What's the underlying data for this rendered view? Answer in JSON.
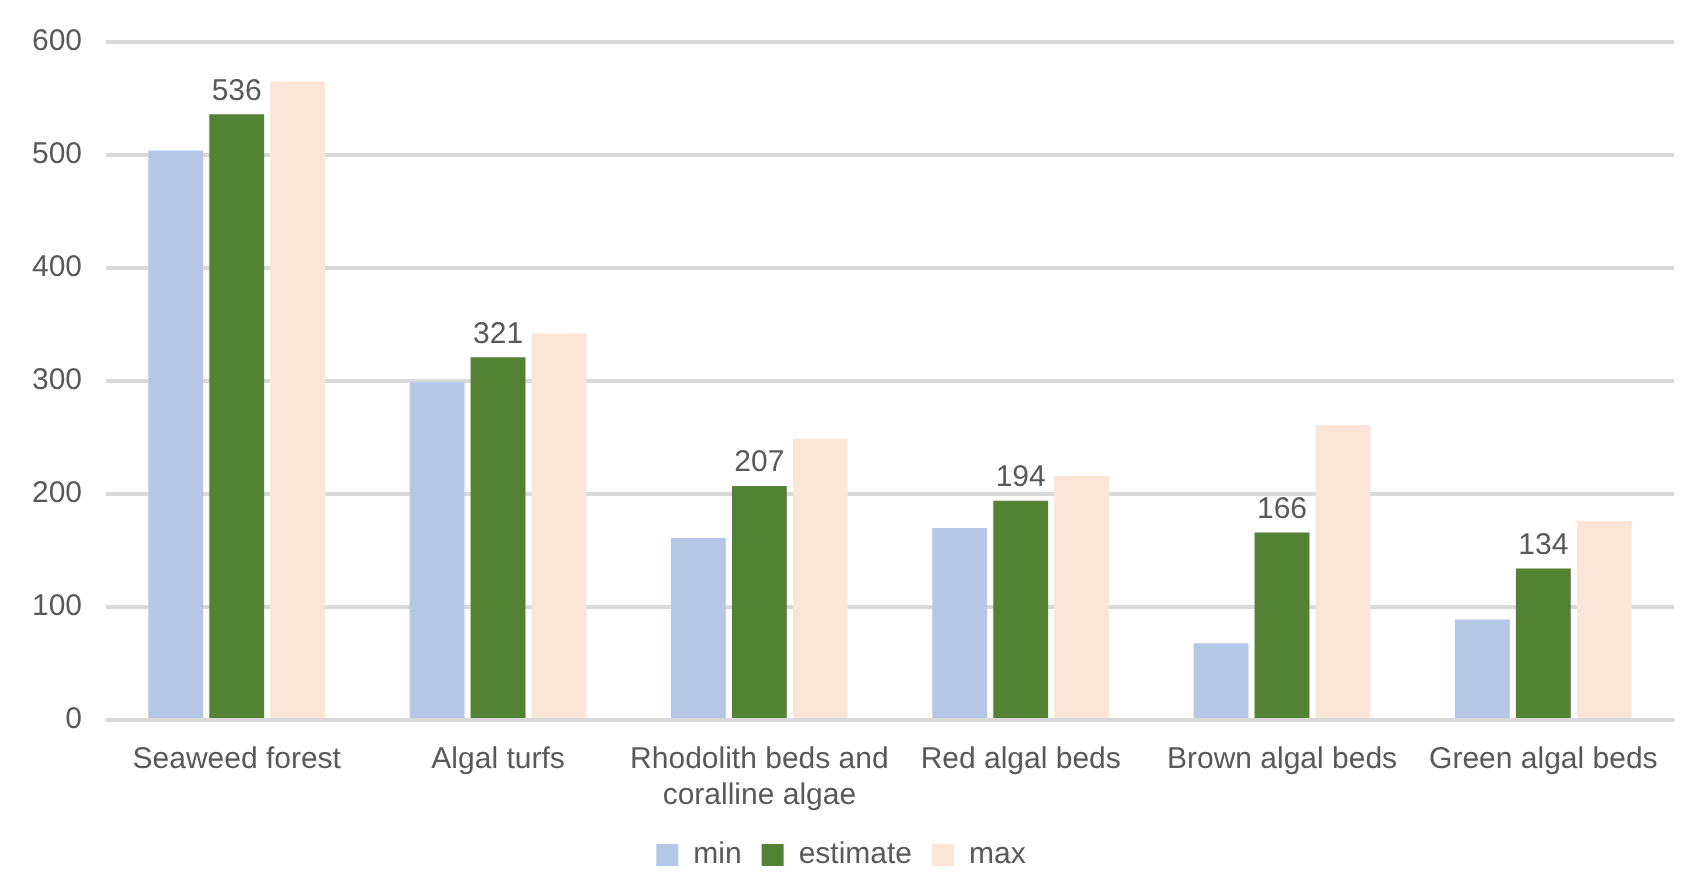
{
  "chart_data": {
    "type": "bar",
    "categories": [
      "Seaweed forest",
      "Algal turfs",
      "Rhodolith beds and coralline algae",
      "Red algal beds",
      "Brown algal beds",
      "Green algal beds"
    ],
    "series": [
      {
        "name": "min",
        "color": "#b4c7e7",
        "values": [
          504,
          299,
          161,
          170,
          68,
          89
        ]
      },
      {
        "name": "estimate",
        "color": "#548235",
        "values": [
          536,
          321,
          207,
          194,
          166,
          134
        ],
        "value_labels": [
          "536",
          "321",
          "207",
          "194",
          "166",
          "134"
        ]
      },
      {
        "name": "max",
        "color": "#fbe5d6",
        "values": [
          565,
          342,
          249,
          216,
          261,
          176
        ]
      }
    ],
    "ylim": [
      0,
      600
    ],
    "yticks": [
      0,
      100,
      200,
      300,
      400,
      500,
      600
    ],
    "grid": "y",
    "legend": "bottom"
  }
}
